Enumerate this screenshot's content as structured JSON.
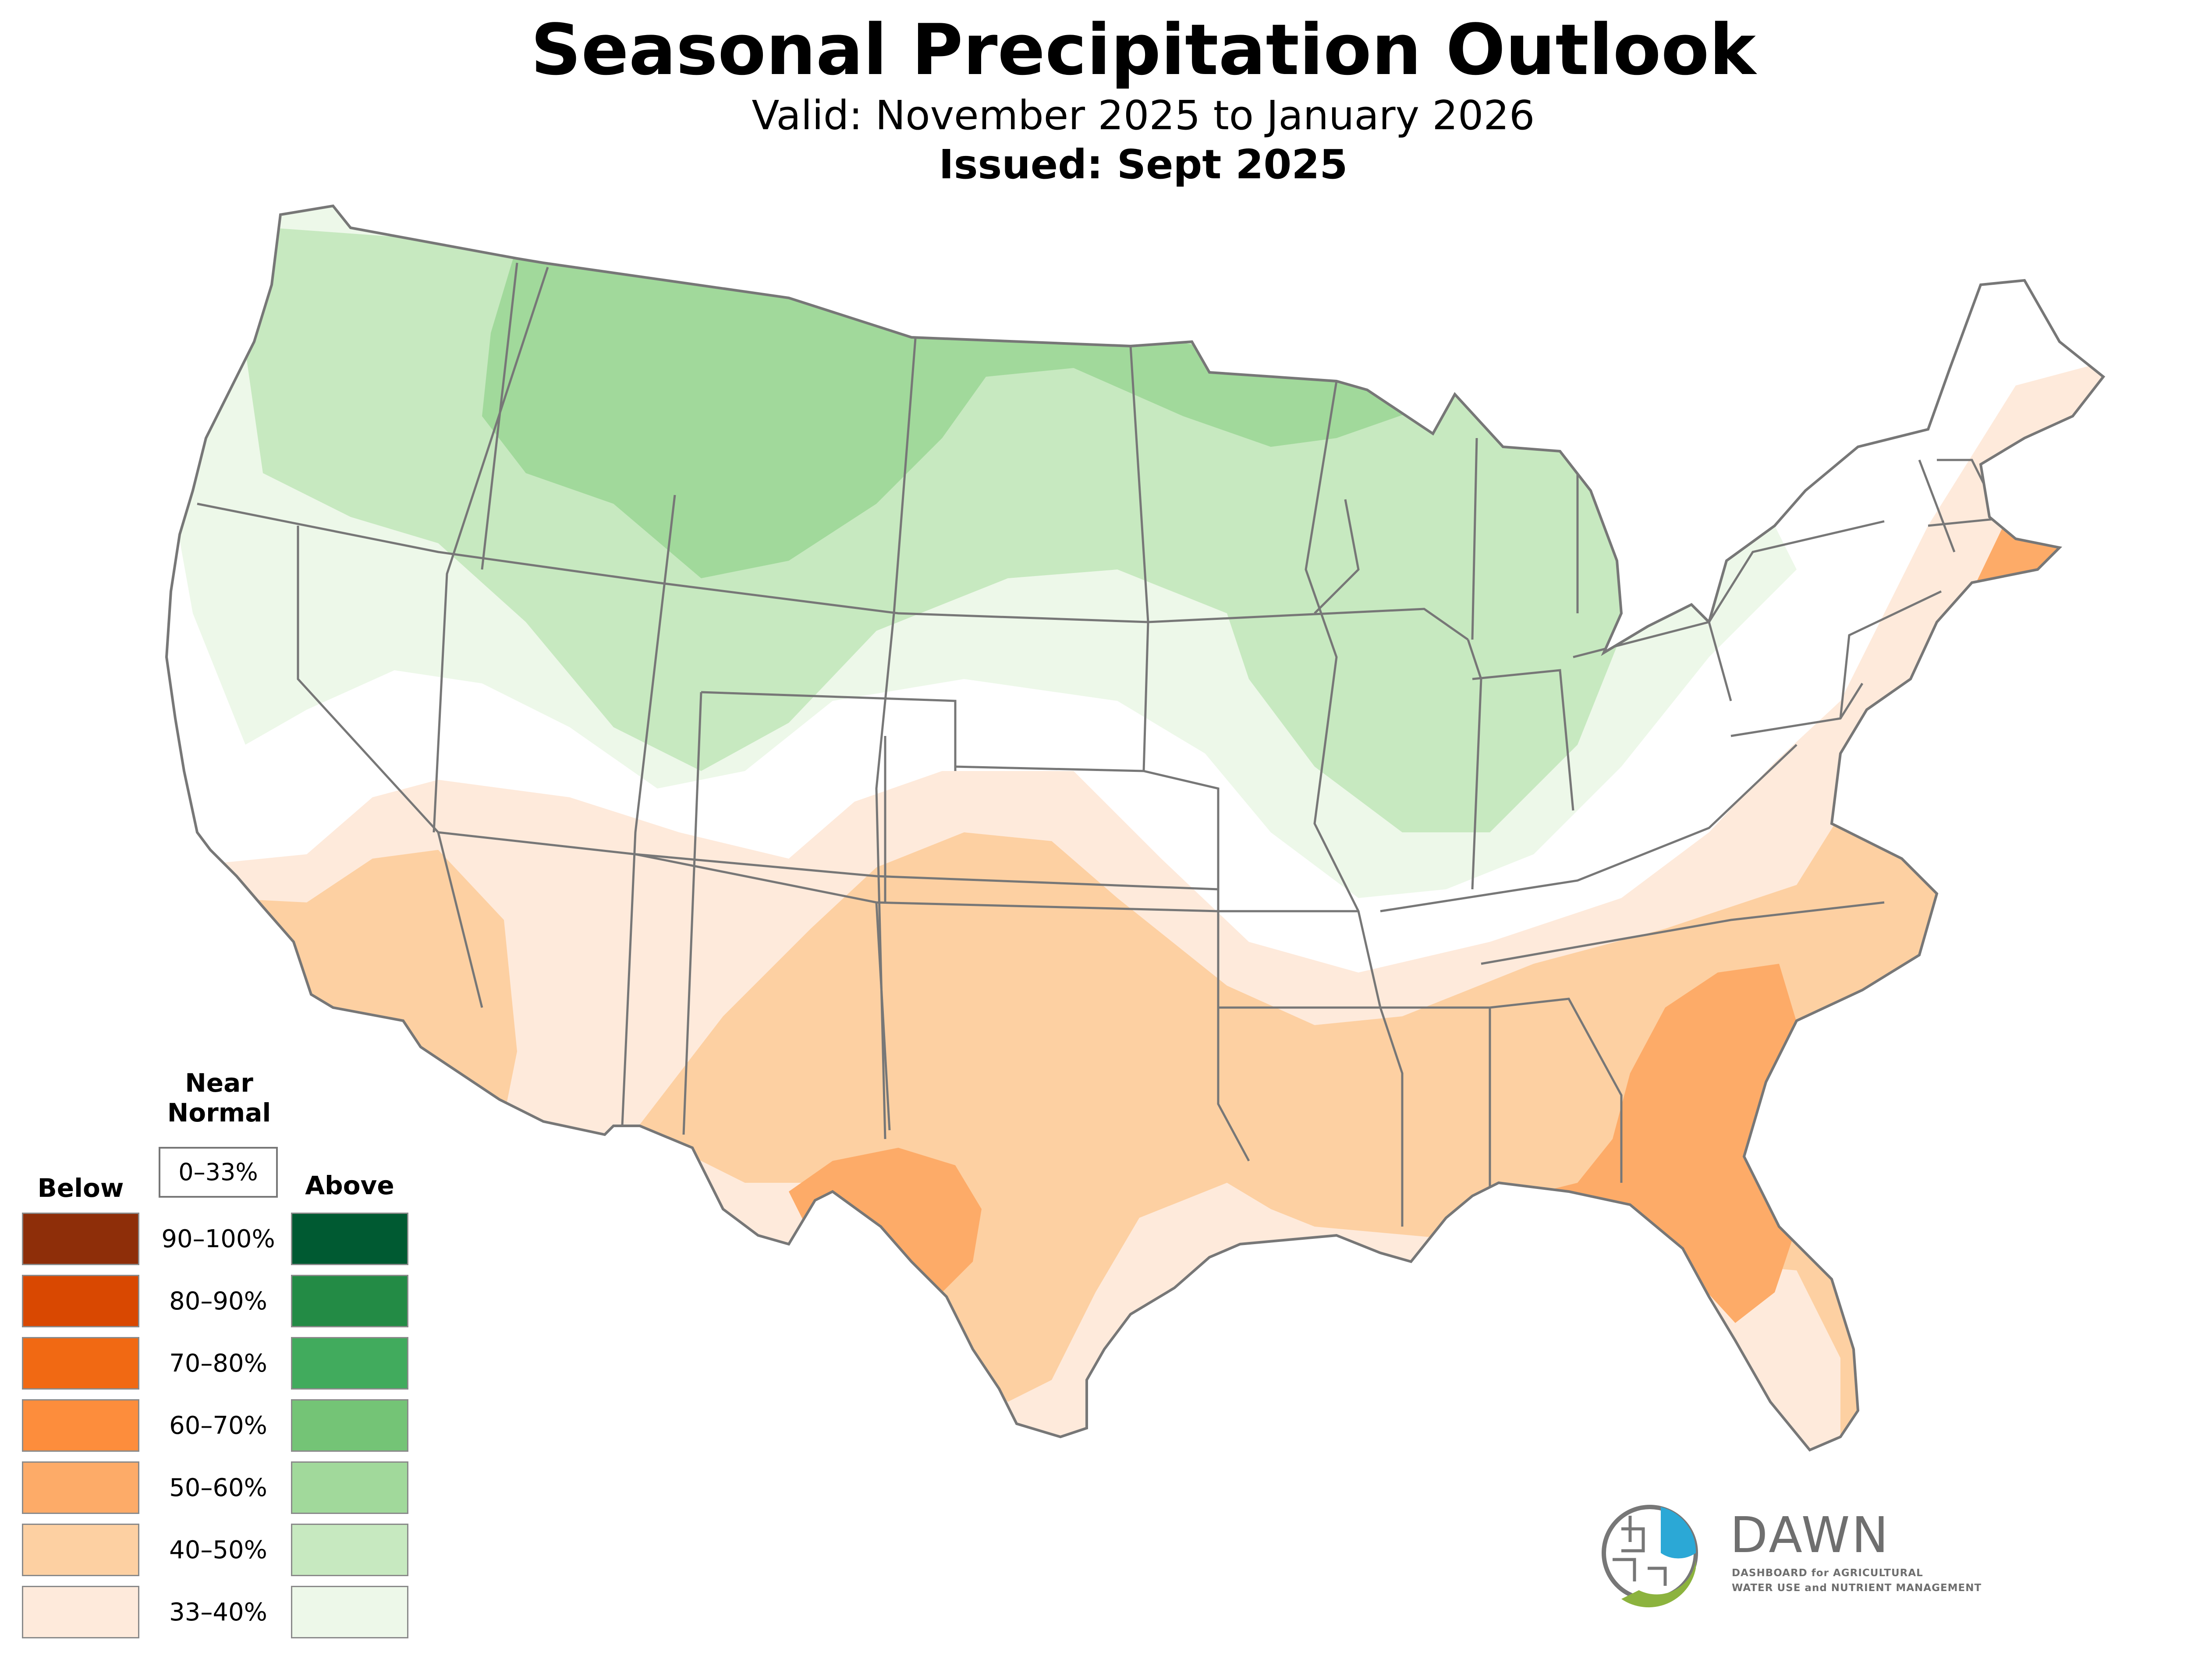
{
  "header": {
    "title": "Seasonal Precipitation Outlook",
    "subtitle": "Valid: November 2025 to January 2026",
    "issued": "Issued: Sept 2025"
  },
  "legend": {
    "below_label": "Below",
    "above_label": "Above",
    "near_label_line1": "Near",
    "near_label_line2": "Normal",
    "near_range": "0–33%",
    "bins": [
      {
        "range": "90–100%",
        "below_color": "#8e2e09",
        "above_color": "#005a32"
      },
      {
        "range": "80–90%",
        "below_color": "#d94801",
        "above_color": "#238b45"
      },
      {
        "range": "70–80%",
        "below_color": "#f16913",
        "above_color": "#41ab5d"
      },
      {
        "range": "60–70%",
        "below_color": "#fd8d3c",
        "above_color": "#74c476"
      },
      {
        "range": "50–60%",
        "below_color": "#fdab68",
        "above_color": "#a1d99b"
      },
      {
        "range": "40–50%",
        "below_color": "#fdd0a2",
        "above_color": "#c7e9c0"
      },
      {
        "range": "33–40%",
        "below_color": "#feeadb",
        "above_color": "#edf8e9"
      }
    ]
  },
  "logo": {
    "name": "DAWN",
    "line1": "DASHBOARD for AGRICULTURAL",
    "line2": "WATER USE and NUTRIENT MANAGEMENT",
    "blue": "#2ba8d6",
    "green": "#8cb33e"
  },
  "map": {
    "outline_color": "#777777",
    "regions": [
      {
        "name": "northwest-above-33-40",
        "category": "Above",
        "range": "33–40%"
      },
      {
        "name": "north-above-40-50",
        "category": "Above",
        "range": "40–50%"
      },
      {
        "name": "northern-rockies-above-50-60",
        "category": "Above",
        "range": "50–60%"
      },
      {
        "name": "southwest-below-33-40",
        "category": "Below",
        "range": "33–40%"
      },
      {
        "name": "south-below-40-50",
        "category": "Below",
        "range": "40–50%"
      },
      {
        "name": "southeast-below-50-60",
        "category": "Below",
        "range": "50–60%"
      },
      {
        "name": "texas-below-50-60",
        "category": "Below",
        "range": "50–60%"
      }
    ]
  }
}
